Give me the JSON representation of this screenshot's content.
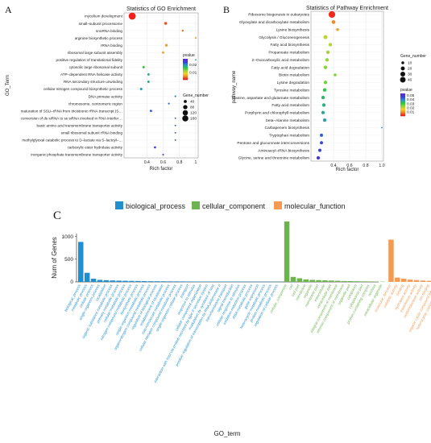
{
  "panel_labels": [
    "A",
    "B",
    "C"
  ],
  "chart_data": [
    {
      "type": "scatter",
      "title": "Statistics of GO Enrichment",
      "xlabel": "Rich factor",
      "ylabel": "GO_Term",
      "xlim": [
        0.12,
        1.03
      ],
      "x_ticks": [
        0.4,
        0.6,
        0.8,
        1.0
      ],
      "x_tick_labels": [
        "0.4",
        "0.6",
        "0.8",
        "1"
      ],
      "grid": true,
      "color_legend": {
        "title": "pvalue",
        "ticks": [
          0.02,
          0.01
        ],
        "tick_labels": [
          "0.02",
          "0.01"
        ],
        "max": 0.028
      },
      "size_legend": {
        "title": "Gene_number",
        "values": [
          40,
          80,
          120,
          160
        ]
      },
      "points": [
        {
          "term": "mycelium development",
          "x": 0.22,
          "size": 175,
          "p": 0.0001
        },
        {
          "term": "small–subunit processome",
          "x": 0.63,
          "size": 28,
          "p": 0.002
        },
        {
          "term": "snoRNA binding",
          "x": 0.84,
          "size": 14,
          "p": 0.003
        },
        {
          "term": "arginine biosynthetic process",
          "x": 1.0,
          "size": 9,
          "p": 0.004
        },
        {
          "term": "rRNA binding",
          "x": 0.64,
          "size": 25,
          "p": 0.005
        },
        {
          "term": "ribosomal large subunit assembly",
          "x": 0.6,
          "size": 22,
          "p": 0.006
        },
        {
          "term": "positive regulation of translational fidelity",
          "x": 1.0,
          "size": 7,
          "p": 0.02
        },
        {
          "term": "cytosolic large ribosomal subunit",
          "x": 0.36,
          "size": 20,
          "p": 0.016
        },
        {
          "term": "ATP–dependent RNA helicase activity",
          "x": 0.42,
          "size": 20,
          "p": 0.018
        },
        {
          "term": "RNA secondary structure unwinding",
          "x": 0.42,
          "size": 20,
          "p": 0.018
        },
        {
          "term": "cellular nitrogen compound biosynthetic process",
          "x": 0.33,
          "size": 22,
          "p": 0.019
        },
        {
          "term": "DNA primase activity",
          "x": 0.75,
          "size": 10,
          "p": 0.021
        },
        {
          "term": "chromosome, centromeric region",
          "x": 0.67,
          "size": 11,
          "p": 0.022
        },
        {
          "term": "maturation of SSU–rRNA from tricistronic rRNA transcript (S…",
          "x": 0.45,
          "size": 18,
          "p": 0.023
        },
        {
          "term": "conversion of ds siRNA to ss siRNA involved in RNA interfer…",
          "x": 0.75,
          "size": 8,
          "p": 0.023
        },
        {
          "term": "basic amino acid transmembrane transporter activity",
          "x": 0.75,
          "size": 8,
          "p": 0.023
        },
        {
          "term": "small ribosomal subunit rRNA binding",
          "x": 0.75,
          "size": 8,
          "p": 0.023
        },
        {
          "term": "methylglyoxal catabolic process to D–lactate via S–lactoyl–…",
          "x": 0.75,
          "size": 8,
          "p": 0.023
        },
        {
          "term": "carboxylic ester hydrolase activity",
          "x": 0.5,
          "size": 16,
          "p": 0.025
        },
        {
          "term": "inorganic phosphate transmembrane transporter activity",
          "x": 0.6,
          "size": 10,
          "p": 0.025
        }
      ]
    },
    {
      "type": "scatter",
      "title": "Statistics of Pathway Enrichment",
      "xlabel": "Rich factor",
      "ylabel": "pathway_name",
      "xlim": [
        0.12,
        1.02
      ],
      "x_ticks": [
        0.4,
        0.6,
        0.8,
        1.0
      ],
      "x_tick_labels": [
        "0.4",
        "0.6",
        "0.8",
        "1.0"
      ],
      "grid": true,
      "color_legend": {
        "title": "pvalue",
        "ticks": [
          0.05,
          0.04,
          0.03,
          0.02,
          0.01
        ],
        "tick_labels": [
          "0.05",
          "0.04",
          "0.03",
          "0.02",
          "0.01"
        ],
        "max": 0.055
      },
      "size_legend": {
        "title": "Gene_number",
        "values": [
          10,
          20,
          30,
          40
        ]
      },
      "points": [
        {
          "term": "Ribosome biogenesis in eukaryotes",
          "x": 0.38,
          "size": 44,
          "p": 0.001
        },
        {
          "term": "Glyoxylate and dicarboxylate metabolism",
          "x": 0.4,
          "size": 14,
          "p": 0.008
        },
        {
          "term": "Lysine biosynthesis",
          "x": 0.45,
          "size": 8,
          "p": 0.01
        },
        {
          "term": "Glycolysis / Gluconeogenesis",
          "x": 0.3,
          "size": 16,
          "p": 0.02
        },
        {
          "term": "Fatty acid biosynthesis",
          "x": 0.36,
          "size": 12,
          "p": 0.021
        },
        {
          "term": "Propanoate metabolism",
          "x": 0.33,
          "size": 12,
          "p": 0.022
        },
        {
          "term": "2–Oxocarboxylic acid metabolism",
          "x": 0.32,
          "size": 12,
          "p": 0.023
        },
        {
          "term": "Fatty acid degradation",
          "x": 0.3,
          "size": 13,
          "p": 0.024
        },
        {
          "term": "Biotin metabolism",
          "x": 0.42,
          "size": 8,
          "p": 0.025
        },
        {
          "term": "Lysine degradation",
          "x": 0.3,
          "size": 12,
          "p": 0.026
        },
        {
          "term": "Tyrosine metabolism",
          "x": 0.29,
          "size": 12,
          "p": 0.032
        },
        {
          "term": "Alanine, aspartate and glutamate metabolism",
          "x": 0.27,
          "size": 12,
          "p": 0.034
        },
        {
          "term": "Fatty acid metabolism",
          "x": 0.28,
          "size": 12,
          "p": 0.035
        },
        {
          "term": "Porphyrin and chlorophyll metabolism",
          "x": 0.27,
          "size": 12,
          "p": 0.036
        },
        {
          "term": "beta–Alanine metabolism",
          "x": 0.29,
          "size": 12,
          "p": 0.037
        },
        {
          "term": "Carbapenem biosynthesis",
          "x": 1.0,
          "size": 2,
          "p": 0.04
        },
        {
          "term": "Tryptophan metabolism",
          "x": 0.25,
          "size": 10,
          "p": 0.045
        },
        {
          "term": "Pentose and glucuronate interconversions",
          "x": 0.25,
          "size": 10,
          "p": 0.046
        },
        {
          "term": "Aminoacyl–tRNA biosynthesis",
          "x": 0.23,
          "size": 10,
          "p": 0.047
        },
        {
          "term": "Glycine, serine and threonine metabolism",
          "x": 0.21,
          "size": 12,
          "p": 0.05
        }
      ]
    },
    {
      "type": "bar",
      "xlabel": "GO_term",
      "ylabel": "Num of Genes",
      "ylim": [
        0,
        1400
      ],
      "y_ticks": [
        0,
        500,
        1000
      ],
      "legend_position": "top",
      "series": [
        {
          "name": "biological_process",
          "color": "#1f8fcf",
          "categories": [
            "biological_process",
            "metabolic process",
            "cellular process",
            "single-organism process",
            "localization",
            "organic substance metabolic process",
            "primary metabolic process",
            "cellular metabolic process",
            "nitrogen compound metabolic process",
            "biosynthetic process",
            "single-organism metabolic process",
            "organonitrogen compound metabolic process",
            "regulation of biological process",
            "establishment of localization",
            "macromolecule metabolic process",
            "cellular nitrogen compound metabolic process",
            "single-organism cellular process",
            "transport",
            "response to stimulus",
            "cellular component organization",
            "interaction with host via protein secreted by type II secretion system",
            "modulation by symbiont of host",
            "positive regulation of transcription by RNA polymerase II",
            "transmembrane transport",
            "signal transduction",
            "cellular response to stimulus",
            "oxidation-reduction process",
            "RNA metabolic process",
            "gene expression",
            "heterocycle metabolic process",
            "protein metabolic process",
            "regulation of cellular process"
          ],
          "values": [
            880,
            200,
            70,
            45,
            38,
            32,
            28,
            25,
            22,
            20,
            18,
            16,
            15,
            14,
            13,
            12,
            11,
            10,
            9,
            9,
            8,
            8,
            7,
            7,
            6,
            6,
            6,
            5,
            5,
            5,
            4,
            4
          ]
        },
        {
          "name": "cellular_component",
          "color": "#6db34f",
          "categories": [
            "cellular_component",
            "cell",
            "cell part",
            "membrane",
            "organelle",
            "membrane part",
            "intracellular",
            "intracellular part",
            "integral component of membrane",
            "intrinsic component of membrane",
            "organelle part",
            "cytoplasm",
            "cytoplasmic part",
            "protein-containing complex",
            "nucleus",
            "intracellular organelle"
          ],
          "values": [
            1330,
            110,
            80,
            55,
            45,
            40,
            35,
            30,
            25,
            20,
            18,
            15,
            12,
            10,
            8,
            6
          ]
        },
        {
          "name": "molecular_function",
          "color": "#f59a53",
          "categories": [
            "molecular_function",
            "catalytic activity",
            "binding",
            "hydrolase activity",
            "transferase activity",
            "oxidoreductase activity",
            "ion binding",
            "organic cyclic compound binding",
            "heterocyclic compound binding",
            "transporter activity",
            "DNA binding",
            "protein binding",
            "RNA binding",
            "metal ion binding",
            "ATP binding",
            "nucleotide binding",
            "kinase activity",
            "structural molecule activity"
          ],
          "values": [
            930,
            95,
            70,
            50,
            40,
            30,
            25,
            20,
            18,
            15,
            12,
            10,
            9,
            8,
            7,
            6,
            5,
            4
          ]
        }
      ]
    }
  ]
}
